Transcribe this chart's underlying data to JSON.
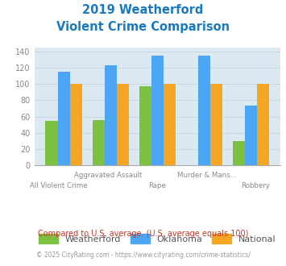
{
  "title_line1": "2019 Weatherford",
  "title_line2": "Violent Crime Comparison",
  "title_color": "#1a7abf",
  "weatherford": [
    55,
    56,
    97,
    0,
    30
  ],
  "oklahoma": [
    115,
    123,
    135,
    135,
    73
  ],
  "national": [
    100,
    100,
    100,
    100,
    100
  ],
  "bar_color_weatherford": "#7dc142",
  "bar_color_oklahoma": "#4da6f5",
  "bar_color_national": "#f5a623",
  "ylim": [
    0,
    145
  ],
  "yticks": [
    0,
    20,
    40,
    60,
    80,
    100,
    120,
    140
  ],
  "grid_color": "#c8d8e0",
  "plot_bg": "#dce9f0",
  "label_top": [
    "",
    "Aggravated Assault",
    "",
    "Murder & Mans...",
    ""
  ],
  "label_bottom": [
    "All Violent Crime",
    "",
    "Rape",
    "",
    "Robbery"
  ],
  "footnote1": "Compared to U.S. average. (U.S. average equals 100)",
  "footnote2": "© 2025 CityRating.com - https://www.cityrating.com/crime-statistics/",
  "footnote1_color": "#c0392b",
  "footnote2_color": "#999999",
  "legend_labels": [
    "Weatherford",
    "Oklahoma",
    "National"
  ],
  "tick_label_color": "#888888"
}
